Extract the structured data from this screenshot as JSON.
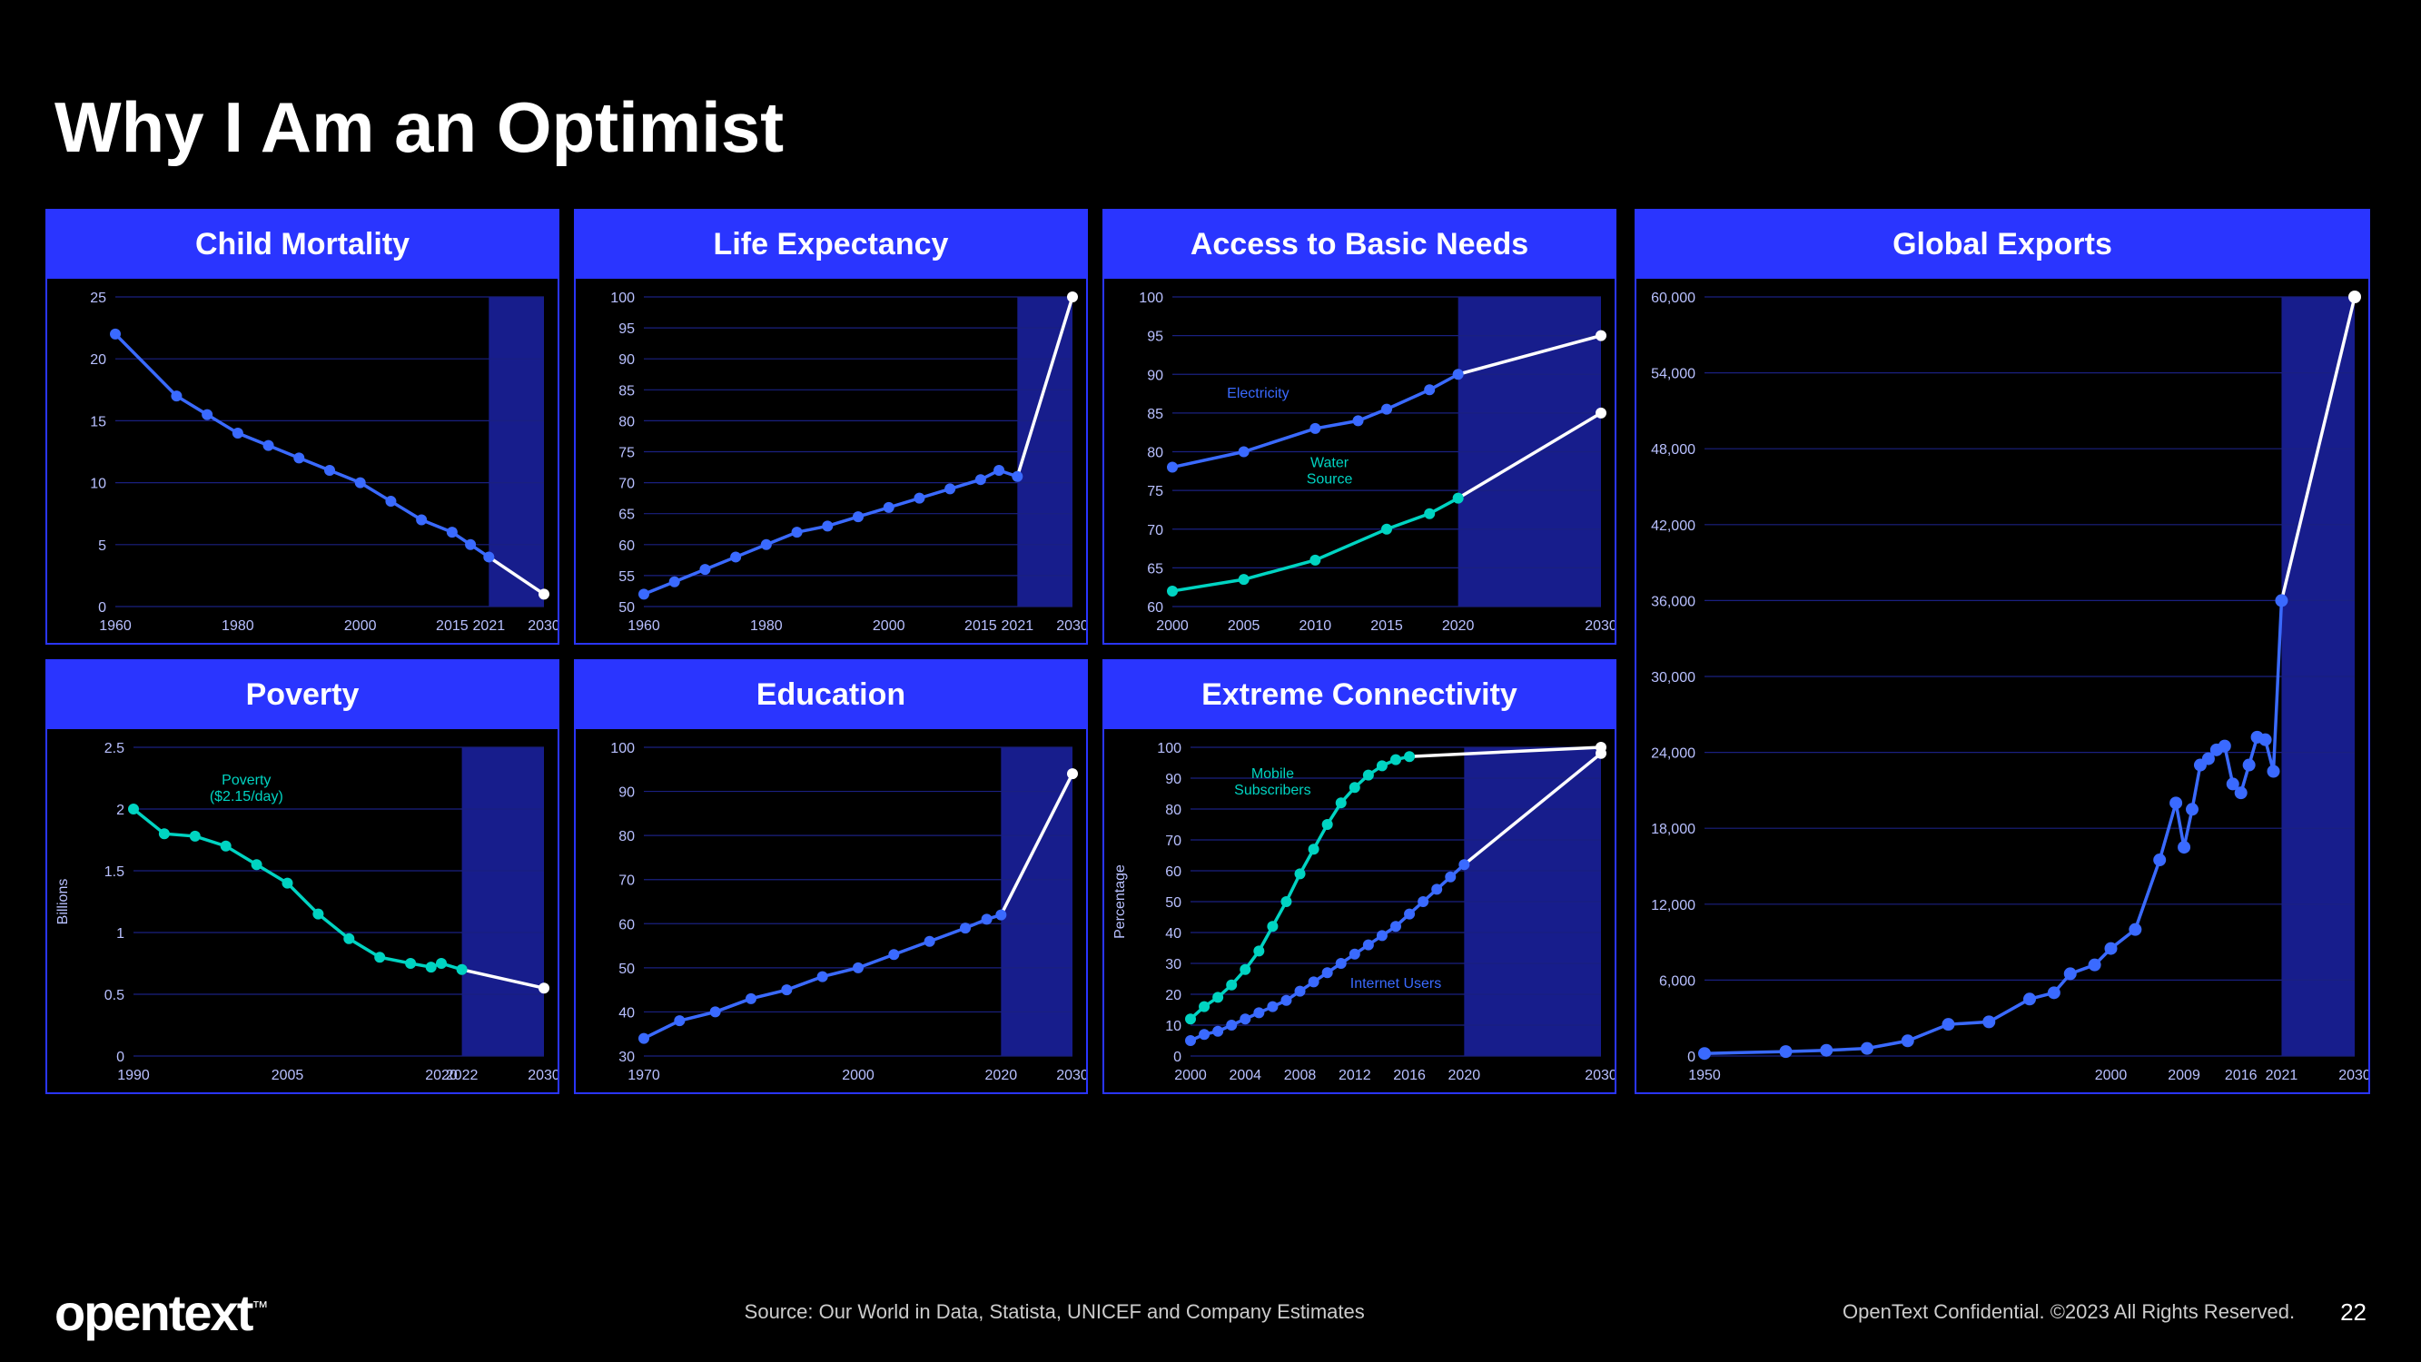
{
  "title": "Why I Am an Optimist",
  "logo": "opentext",
  "logo_tm": "™",
  "source": "Source: Our World in Data, Statista, UNICEF and Company Estimates",
  "confidential": "OpenText Confidential. ©2023 All Rights Reserved.",
  "page_number": "22",
  "colors": {
    "bg": "#000000",
    "panel_border": "#2a35ff",
    "header_bg": "#2a35ff",
    "grid": "#1a2080",
    "axis_text": "#b8c0ff",
    "series_blue": "#3a6aff",
    "series_teal": "#00d4c2",
    "future_white": "#ffffff",
    "forecast_band": "#2a35ff"
  },
  "panels": [
    {
      "id": "child-mortality",
      "title": "Child Mortality",
      "ylabel": "",
      "ymin": 0,
      "ymax": 25,
      "ystep": 5,
      "xticks": [
        1960,
        1980,
        2000,
        2015,
        2021,
        2030
      ],
      "forecast_start": 2021,
      "series": [
        {
          "name": "mortality",
          "color": "#3a6aff",
          "label": "",
          "points": [
            {
              "x": 1960,
              "y": 22
            },
            {
              "x": 1970,
              "y": 17
            },
            {
              "x": 1975,
              "y": 15.5
            },
            {
              "x": 1980,
              "y": 14
            },
            {
              "x": 1985,
              "y": 13
            },
            {
              "x": 1990,
              "y": 12
            },
            {
              "x": 1995,
              "y": 11
            },
            {
              "x": 2000,
              "y": 10
            },
            {
              "x": 2005,
              "y": 8.5
            },
            {
              "x": 2010,
              "y": 7
            },
            {
              "x": 2015,
              "y": 6
            },
            {
              "x": 2018,
              "y": 5
            },
            {
              "x": 2021,
              "y": 4
            },
            {
              "x": 2030,
              "y": 1,
              "future": true
            }
          ]
        }
      ]
    },
    {
      "id": "life-expectancy",
      "title": "Life Expectancy",
      "ylabel": "",
      "ymin": 50,
      "ymax": 100,
      "ystep": 5,
      "xticks": [
        1960,
        1980,
        2000,
        2015,
        2021,
        2030
      ],
      "forecast_start": 2021,
      "series": [
        {
          "name": "life-exp",
          "color": "#3a6aff",
          "label": "",
          "points": [
            {
              "x": 1960,
              "y": 52
            },
            {
              "x": 1965,
              "y": 54
            },
            {
              "x": 1970,
              "y": 56
            },
            {
              "x": 1975,
              "y": 58
            },
            {
              "x": 1980,
              "y": 60
            },
            {
              "x": 1985,
              "y": 62
            },
            {
              "x": 1990,
              "y": 63
            },
            {
              "x": 1995,
              "y": 64.5
            },
            {
              "x": 2000,
              "y": 66
            },
            {
              "x": 2005,
              "y": 67.5
            },
            {
              "x": 2010,
              "y": 69
            },
            {
              "x": 2015,
              "y": 70.5
            },
            {
              "x": 2018,
              "y": 72
            },
            {
              "x": 2021,
              "y": 71
            },
            {
              "x": 2030,
              "y": 100,
              "future": true
            }
          ]
        }
      ]
    },
    {
      "id": "basic-needs",
      "title": "Access to Basic Needs",
      "ylabel": "",
      "ymin": 60,
      "ymax": 100,
      "ystep": 5,
      "xticks": [
        2000,
        2005,
        2010,
        2015,
        2020,
        2030
      ],
      "forecast_start": 2020,
      "series": [
        {
          "name": "electricity",
          "color": "#3a6aff",
          "label": "Electricity",
          "label_x": 2006,
          "label_y": 87,
          "points": [
            {
              "x": 2000,
              "y": 78
            },
            {
              "x": 2005,
              "y": 80
            },
            {
              "x": 2010,
              "y": 83
            },
            {
              "x": 2013,
              "y": 84
            },
            {
              "x": 2015,
              "y": 85.5
            },
            {
              "x": 2018,
              "y": 88
            },
            {
              "x": 2020,
              "y": 90
            },
            {
              "x": 2030,
              "y": 95,
              "future": true
            }
          ]
        },
        {
          "name": "water",
          "color": "#00d4c2",
          "label": "Water\nSource",
          "label_x": 2011,
          "label_y": 78,
          "points": [
            {
              "x": 2000,
              "y": 62
            },
            {
              "x": 2005,
              "y": 63.5
            },
            {
              "x": 2010,
              "y": 66
            },
            {
              "x": 2015,
              "y": 70
            },
            {
              "x": 2018,
              "y": 72
            },
            {
              "x": 2020,
              "y": 74
            },
            {
              "x": 2030,
              "y": 85,
              "future": true
            }
          ]
        }
      ]
    },
    {
      "id": "poverty",
      "title": "Poverty",
      "ylabel": "Billions",
      "ymin": 0,
      "ymax": 2.5,
      "ystep": 0.5,
      "xticks": [
        1990,
        2005,
        2020,
        2022,
        2030
      ],
      "forecast_start": 2022,
      "series": [
        {
          "name": "poverty",
          "color": "#00d4c2",
          "label": "Poverty\n($2.15/day)",
          "label_x": 2001,
          "label_y": 2.2,
          "points": [
            {
              "x": 1990,
              "y": 2.0
            },
            {
              "x": 1993,
              "y": 1.8
            },
            {
              "x": 1996,
              "y": 1.78
            },
            {
              "x": 1999,
              "y": 1.7
            },
            {
              "x": 2002,
              "y": 1.55
            },
            {
              "x": 2005,
              "y": 1.4
            },
            {
              "x": 2008,
              "y": 1.15
            },
            {
              "x": 2011,
              "y": 0.95
            },
            {
              "x": 2014,
              "y": 0.8
            },
            {
              "x": 2017,
              "y": 0.75
            },
            {
              "x": 2019,
              "y": 0.72
            },
            {
              "x": 2020,
              "y": 0.75
            },
            {
              "x": 2022,
              "y": 0.7
            },
            {
              "x": 2030,
              "y": 0.55,
              "future": true
            }
          ]
        }
      ]
    },
    {
      "id": "education",
      "title": "Education",
      "ylabel": "",
      "ymin": 30,
      "ymax": 100,
      "ystep": 10,
      "xticks": [
        1970,
        2000,
        2020,
        2030
      ],
      "forecast_start": 2020,
      "series": [
        {
          "name": "education",
          "color": "#3a6aff",
          "label": "",
          "points": [
            {
              "x": 1970,
              "y": 34
            },
            {
              "x": 1975,
              "y": 38
            },
            {
              "x": 1980,
              "y": 40
            },
            {
              "x": 1985,
              "y": 43
            },
            {
              "x": 1990,
              "y": 45
            },
            {
              "x": 1995,
              "y": 48
            },
            {
              "x": 2000,
              "y": 50
            },
            {
              "x": 2005,
              "y": 53
            },
            {
              "x": 2010,
              "y": 56
            },
            {
              "x": 2015,
              "y": 59
            },
            {
              "x": 2018,
              "y": 61
            },
            {
              "x": 2020,
              "y": 62
            },
            {
              "x": 2030,
              "y": 94,
              "future": true
            }
          ]
        }
      ]
    },
    {
      "id": "connectivity",
      "title": "Extreme Connectivity",
      "ylabel": "Percentage",
      "ymin": 0,
      "ymax": 100,
      "ystep": 10,
      "xticks": [
        2000,
        2004,
        2008,
        2012,
        2016,
        2020,
        2030
      ],
      "forecast_start": 2020,
      "series": [
        {
          "name": "mobile",
          "color": "#00d4c2",
          "label": "Mobile\nSubscribers",
          "label_x": 2006,
          "label_y": 90,
          "points": [
            {
              "x": 2000,
              "y": 12
            },
            {
              "x": 2001,
              "y": 16
            },
            {
              "x": 2002,
              "y": 19
            },
            {
              "x": 2003,
              "y": 23
            },
            {
              "x": 2004,
              "y": 28
            },
            {
              "x": 2005,
              "y": 34
            },
            {
              "x": 2006,
              "y": 42
            },
            {
              "x": 2007,
              "y": 50
            },
            {
              "x": 2008,
              "y": 59
            },
            {
              "x": 2009,
              "y": 67
            },
            {
              "x": 2010,
              "y": 75
            },
            {
              "x": 2011,
              "y": 82
            },
            {
              "x": 2012,
              "y": 87
            },
            {
              "x": 2013,
              "y": 91
            },
            {
              "x": 2014,
              "y": 94
            },
            {
              "x": 2015,
              "y": 96
            },
            {
              "x": 2016,
              "y": 97
            },
            {
              "x": 2030,
              "y": 100,
              "future": true
            }
          ]
        },
        {
          "name": "internet",
          "color": "#3a6aff",
          "label": "Internet Users",
          "label_x": 2015,
          "label_y": 22,
          "points": [
            {
              "x": 2000,
              "y": 5
            },
            {
              "x": 2001,
              "y": 7
            },
            {
              "x": 2002,
              "y": 8
            },
            {
              "x": 2003,
              "y": 10
            },
            {
              "x": 2004,
              "y": 12
            },
            {
              "x": 2005,
              "y": 14
            },
            {
              "x": 2006,
              "y": 16
            },
            {
              "x": 2007,
              "y": 18
            },
            {
              "x": 2008,
              "y": 21
            },
            {
              "x": 2009,
              "y": 24
            },
            {
              "x": 2010,
              "y": 27
            },
            {
              "x": 2011,
              "y": 30
            },
            {
              "x": 2012,
              "y": 33
            },
            {
              "x": 2013,
              "y": 36
            },
            {
              "x": 2014,
              "y": 39
            },
            {
              "x": 2015,
              "y": 42
            },
            {
              "x": 2016,
              "y": 46
            },
            {
              "x": 2017,
              "y": 50
            },
            {
              "x": 2018,
              "y": 54
            },
            {
              "x": 2019,
              "y": 58
            },
            {
              "x": 2020,
              "y": 62
            },
            {
              "x": 2030,
              "y": 98,
              "future": true
            }
          ]
        }
      ]
    }
  ],
  "global_exports": {
    "title": "Global Exports",
    "ylabel": "",
    "ymin": 0,
    "ymax": 60000,
    "ystep": 6000,
    "xticks": [
      1950,
      2000,
      2009,
      2016,
      2021,
      2030
    ],
    "forecast_start": 2021,
    "series": [
      {
        "name": "exports",
        "color": "#3a6aff",
        "label": "",
        "points": [
          {
            "x": 1950,
            "y": 200
          },
          {
            "x": 1960,
            "y": 350
          },
          {
            "x": 1965,
            "y": 450
          },
          {
            "x": 1970,
            "y": 600
          },
          {
            "x": 1975,
            "y": 1200
          },
          {
            "x": 1980,
            "y": 2500
          },
          {
            "x": 1985,
            "y": 2700
          },
          {
            "x": 1990,
            "y": 4500
          },
          {
            "x": 1993,
            "y": 5000
          },
          {
            "x": 1995,
            "y": 6500
          },
          {
            "x": 1998,
            "y": 7200
          },
          {
            "x": 2000,
            "y": 8500
          },
          {
            "x": 2003,
            "y": 10000
          },
          {
            "x": 2006,
            "y": 15500
          },
          {
            "x": 2008,
            "y": 20000
          },
          {
            "x": 2009,
            "y": 16500
          },
          {
            "x": 2010,
            "y": 19500
          },
          {
            "x": 2011,
            "y": 23000
          },
          {
            "x": 2012,
            "y": 23500
          },
          {
            "x": 2013,
            "y": 24200
          },
          {
            "x": 2014,
            "y": 24500
          },
          {
            "x": 2015,
            "y": 21500
          },
          {
            "x": 2016,
            "y": 20800
          },
          {
            "x": 2017,
            "y": 23000
          },
          {
            "x": 2018,
            "y": 25200
          },
          {
            "x": 2019,
            "y": 25000
          },
          {
            "x": 2020,
            "y": 22500
          },
          {
            "x": 2021,
            "y": 36000
          },
          {
            "x": 2030,
            "y": 60000,
            "future": true
          }
        ]
      }
    ]
  }
}
